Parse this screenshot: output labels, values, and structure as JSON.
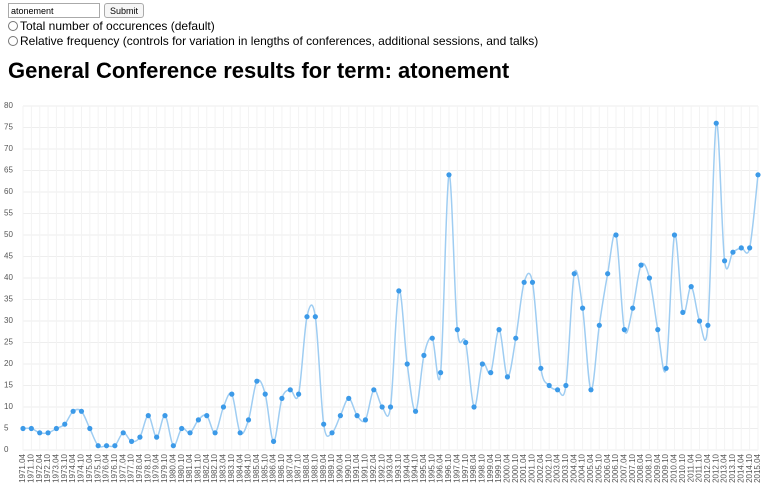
{
  "form": {
    "search_value": "atonement",
    "submit_label": "Submit",
    "options": [
      "Total number of occurences (default)",
      "Relative frequency (controls for variation in lengths of conferences, additional sessions, and talks)"
    ]
  },
  "chart_data": {
    "type": "line",
    "title": "General Conference results for term: atonement",
    "categories": [
      "1971.04",
      "1971.10",
      "1972.04",
      "1972.10",
      "1973.04",
      "1973.10",
      "1974.04",
      "1974.10",
      "1975.04",
      "1975.10",
      "1976.04",
      "1976.10",
      "1977.04",
      "1977.10",
      "1978.04",
      "1978.10",
      "1979.04",
      "1979.10",
      "1980.04",
      "1980.10",
      "1981.04",
      "1981.10",
      "1982.04",
      "1982.10",
      "1983.04",
      "1983.10",
      "1984.04",
      "1984.10",
      "1985.04",
      "1985.10",
      "1986.04",
      "1986.10",
      "1987.04",
      "1987.10",
      "1988.04",
      "1988.10",
      "1989.04",
      "1989.10",
      "1990.04",
      "1990.10",
      "1991.04",
      "1991.10",
      "1992.04",
      "1992.10",
      "1993.04",
      "1993.10",
      "1994.04",
      "1994.10",
      "1995.04",
      "1995.10",
      "1996.04",
      "1996.10",
      "1997.04",
      "1997.10",
      "1998.04",
      "1998.10",
      "1999.04",
      "1999.10",
      "2000.04",
      "2000.10",
      "2001.04",
      "2001.10",
      "2002.04",
      "2002.10",
      "2003.04",
      "2003.10",
      "2004.04",
      "2004.10",
      "2005.04",
      "2005.10",
      "2006.04",
      "2006.10",
      "2007.04",
      "2007.10",
      "2008.04",
      "2008.10",
      "2009.04",
      "2009.10",
      "2010.04",
      "2010.10",
      "2011.04",
      "2011.10",
      "2012.04",
      "2012.10",
      "2013.04",
      "2013.10",
      "2014.04",
      "2014.10",
      "2015.04"
    ],
    "values": [
      5,
      5,
      4,
      4,
      5,
      6,
      9,
      9,
      5,
      1,
      1,
      1,
      4,
      2,
      3,
      8,
      3,
      8,
      1,
      5,
      4,
      7,
      8,
      4,
      10,
      13,
      4,
      7,
      16,
      13,
      2,
      12,
      14,
      13,
      31,
      31,
      6,
      4,
      8,
      12,
      8,
      7,
      14,
      10,
      10,
      37,
      20,
      9,
      22,
      26,
      18,
      64,
      28,
      25,
      10,
      20,
      18,
      28,
      17,
      26,
      39,
      39,
      19,
      15,
      14,
      15,
      41,
      33,
      14,
      29,
      41,
      50,
      28,
      33,
      43,
      40,
      28,
      19,
      50,
      32,
      38,
      30,
      29,
      76,
      44,
      46,
      47,
      47,
      64
    ],
    "line_color": "#9fcdf2",
    "point_color": "#3c9ae8",
    "ylim": [
      0,
      80
    ],
    "yticks": [
      0,
      5,
      10,
      15,
      20,
      25,
      30,
      35,
      40,
      45,
      50,
      55,
      60,
      65,
      70,
      75,
      80
    ],
    "grid": true
  }
}
